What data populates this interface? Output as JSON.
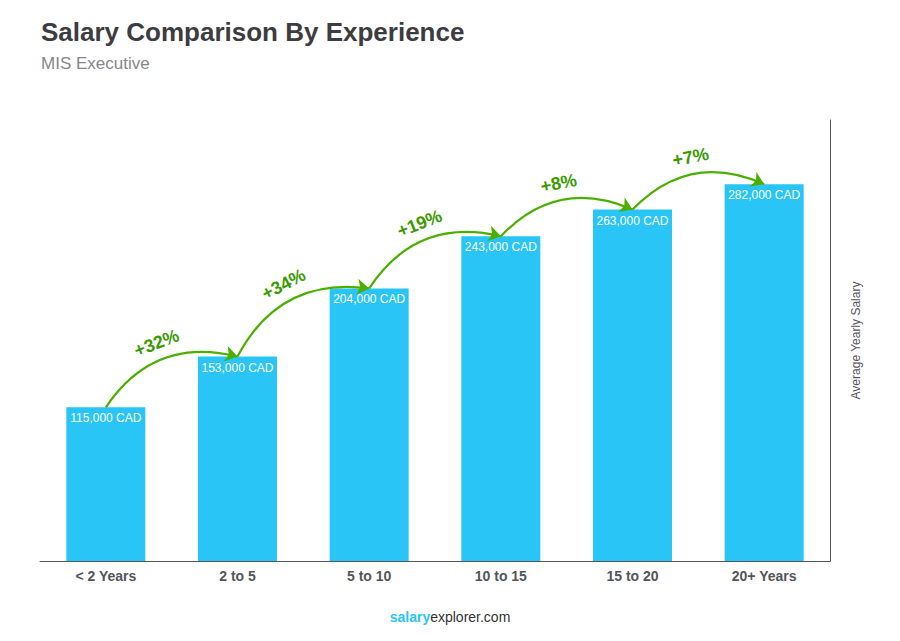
{
  "chart_data": {
    "type": "bar",
    "title": "Salary Comparison By Experience",
    "subtitle": "MIS Executive",
    "categories": [
      "< 2 Years",
      "2 to 5",
      "5 to 10",
      "10 to 15",
      "15 to 20",
      "20+ Years"
    ],
    "values": [
      115000,
      153000,
      204000,
      243000,
      263000,
      282000
    ],
    "value_labels": [
      "115,000 CAD",
      "153,000 CAD",
      "204,000 CAD",
      "243,000 CAD",
      "263,000 CAD",
      "282,000 CAD"
    ],
    "data_labels": true,
    "annotations": [
      "+32%",
      "+34%",
      "+19%",
      "+8%",
      "+7%"
    ],
    "ylabel": "Average Yearly Salary",
    "footer": [
      "salary",
      "explorer.com"
    ],
    "color": "#29c5f6",
    "ylim": [
      0,
      330000
    ],
    "grid": false,
    "tick_labels": "x"
  }
}
